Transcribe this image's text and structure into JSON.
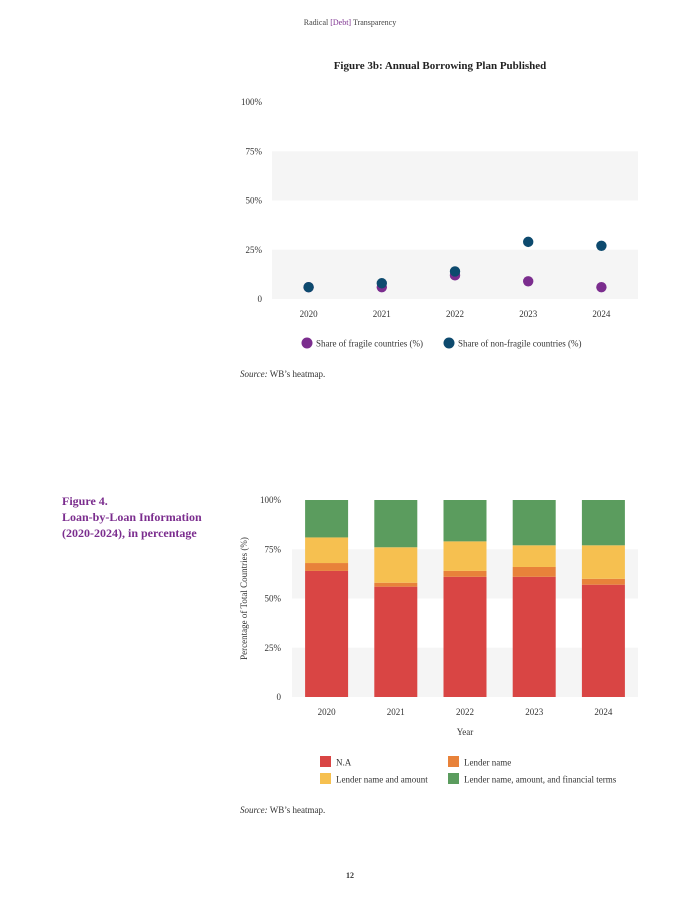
{
  "header": {
    "prefix": "Radical ",
    "accent": "[Debt]",
    "suffix": " Transparency"
  },
  "figure3b": {
    "title": "Figure 3b: Annual Borrowing Plan Published"
  },
  "figure4": {
    "title_line1": "Figure 4.",
    "title_line2": "Loan-by-Loan Information",
    "title_line3": "(2020-2024), in percentage"
  },
  "sources": [
    {
      "label": "Source:",
      "text": " WB’s heatmap."
    },
    {
      "label": "Source:",
      "text": " WB’s heatmap."
    }
  ],
  "page_number": "12",
  "colors": {
    "accent": "#7b2d8e",
    "fragile": "#7b2d8e",
    "non_fragile": "#0d4a6e",
    "na": "#d94544",
    "lender_name": "#e8823a",
    "lender_name_amount": "#f6c050",
    "lender_full": "#5b9c5e",
    "band": "#f5f5f5"
  },
  "chart_data": [
    {
      "type": "scatter",
      "title": "Figure 3b: Annual Borrowing Plan Published",
      "x": [
        "2020",
        "2021",
        "2022",
        "2023",
        "2024"
      ],
      "ylim": [
        0,
        100
      ],
      "yticks": [
        "0",
        "25%",
        "50%",
        "75%",
        "100%"
      ],
      "ytick_values": [
        0,
        25,
        50,
        75,
        100
      ],
      "legend_position": "bottom",
      "series": [
        {
          "name": "Share of fragile countries (%)",
          "values": [
            6,
            6,
            12,
            9,
            6
          ]
        },
        {
          "name": "Share of non-fragile countries (%)",
          "values": [
            6,
            8,
            14,
            29,
            27
          ]
        }
      ]
    },
    {
      "type": "bar",
      "stacked": true,
      "categories": [
        "2020",
        "2021",
        "2022",
        "2023",
        "2024"
      ],
      "xlabel": "Year",
      "ylabel": "Percentage of Total Countries (%)",
      "ylim": [
        0,
        100
      ],
      "yticks": [
        "0",
        "25%",
        "50%",
        "75%",
        "100%"
      ],
      "ytick_values": [
        0,
        25,
        50,
        75,
        100
      ],
      "legend_position": "bottom",
      "series": [
        {
          "name": "N.A",
          "values": [
            64,
            56,
            61,
            61,
            57
          ]
        },
        {
          "name": "Lender name",
          "values": [
            4,
            2,
            3,
            5,
            3
          ]
        },
        {
          "name": "Lender name and amount",
          "values": [
            13,
            18,
            15,
            11,
            17
          ]
        },
        {
          "name": "Lender name, amount, and financial terms",
          "values": [
            19,
            24,
            21,
            23,
            23
          ]
        }
      ]
    }
  ]
}
